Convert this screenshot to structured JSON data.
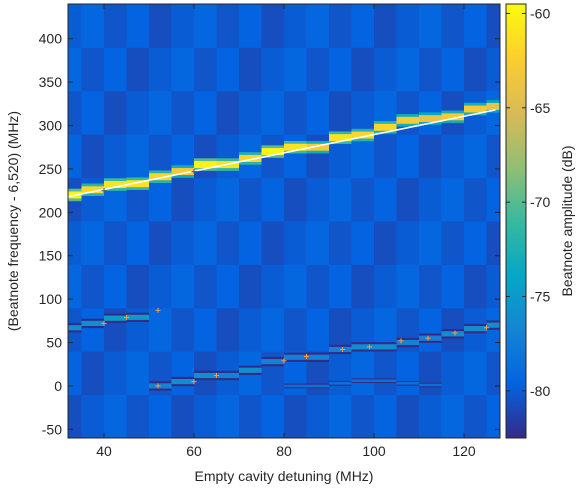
{
  "chart_data": {
    "type": "heatmap",
    "xlabel": "Empty cavity detuning (MHz)",
    "ylabel": "(Beatnote frequency - 6,520) (MHz)",
    "colorbar_label": "Beatnote amplitude (dB)",
    "xlim": [
      32,
      128
    ],
    "ylim": [
      -60,
      440
    ],
    "xticks": [
      40,
      60,
      80,
      100,
      120
    ],
    "yticks": [
      -50,
      0,
      50,
      100,
      150,
      200,
      250,
      300,
      350,
      400
    ],
    "color_range_db": [
      -82.5,
      -59.5
    ],
    "colorbar_ticks": [
      -60,
      -65,
      -70,
      -75,
      -80
    ],
    "background_db": -80,
    "colormap": "parula",
    "detuning_steps_mhz": [
      32.5,
      37.5,
      42.5,
      47.5,
      52.5,
      57.5,
      62.5,
      67.5,
      72.5,
      77.5,
      82.5,
      87.5,
      92.5,
      97.5,
      102.5,
      107.5,
      112.5,
      117.5,
      122.5,
      127.5
    ],
    "upper_branch_mhz": [
      220,
      226,
      232,
      233,
      241,
      247,
      255,
      255,
      262,
      270,
      275,
      275,
      286,
      289,
      298,
      306,
      308,
      310,
      319,
      322
    ],
    "lower_branch_mhz": [
      67,
      72,
      78,
      79,
      0,
      5,
      12,
      12,
      18,
      28,
      33,
      33,
      42,
      45,
      45,
      50,
      55,
      60,
      66,
      70
    ],
    "weak_branch_mhz": [
      null,
      null,
      null,
      null,
      null,
      null,
      null,
      null,
      null,
      null,
      0,
      0,
      3,
      6,
      6,
      3,
      1,
      null,
      null,
      null
    ],
    "upper_branch_db": [
      -60,
      -62,
      -61,
      -61,
      -62,
      -63,
      -60,
      -61,
      -62,
      -60,
      -61,
      -63,
      -61,
      -62,
      -62,
      -63,
      -64,
      -63,
      -63,
      -64
    ],
    "lower_branch_db": [
      -76,
      -76,
      -75,
      -75,
      -77,
      -76,
      -76,
      -77,
      -76,
      -77,
      -77,
      -77,
      -77,
      -76,
      -76,
      -77,
      -77,
      -76,
      -76,
      -76
    ],
    "fit_line": {
      "x": [
        32,
        127
      ],
      "y": [
        218,
        318
      ],
      "color": "#ffffff"
    },
    "markers_upper": [
      {
        "x": 40,
        "y": 225
      },
      {
        "x": 60,
        "y": 247
      }
    ],
    "markers_lower": [
      {
        "x": 40,
        "y": 72
      },
      {
        "x": 45,
        "y": 79
      },
      {
        "x": 52,
        "y": 87
      },
      {
        "x": 52,
        "y": 0
      },
      {
        "x": 60,
        "y": 5
      },
      {
        "x": 65,
        "y": 12
      },
      {
        "x": 80,
        "y": 29
      },
      {
        "x": 85,
        "y": 34
      },
      {
        "x": 93,
        "y": 42
      },
      {
        "x": 99,
        "y": 45
      },
      {
        "x": 106,
        "y": 52
      },
      {
        "x": 112,
        "y": 55
      },
      {
        "x": 118,
        "y": 61
      },
      {
        "x": 125,
        "y": 67
      }
    ]
  }
}
